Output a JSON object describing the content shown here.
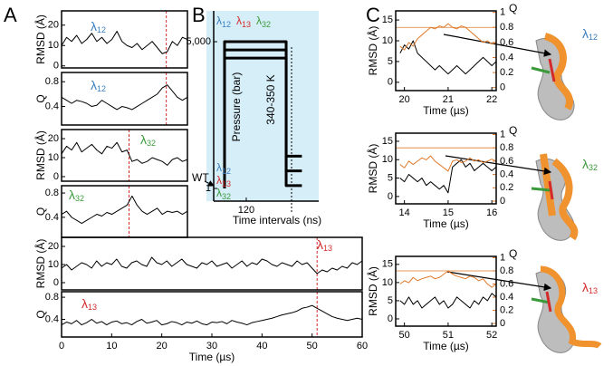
{
  "panels": [
    "A",
    "B",
    "C"
  ],
  "chart_data": [
    {
      "type": "line",
      "ylabel": "RMSD (Å)",
      "xlim": [
        0,
        25
      ],
      "ylim": [
        -1,
        27
      ],
      "yticks": [
        0,
        10,
        20
      ],
      "x": [
        0,
        1,
        2,
        3,
        4,
        5,
        6,
        7,
        8,
        9,
        10,
        11,
        12,
        13,
        14,
        15,
        16,
        17,
        18,
        19,
        20,
        21,
        22,
        23,
        24,
        25
      ],
      "series": [
        {
          "color": "#000000",
          "values": [
            10,
            14,
            12,
            15,
            11,
            13,
            16,
            12,
            14,
            11,
            13,
            17,
            12,
            10,
            9,
            11,
            8,
            10,
            12,
            9,
            6,
            7,
            12,
            10,
            14,
            13
          ]
        }
      ],
      "vlines": [
        {
          "x": 20.8,
          "color": "#d42a2a"
        }
      ],
      "annotations": [
        {
          "text": "λ",
          "sub": "12",
          "color": "#3a7fc1"
        }
      ]
    },
    {
      "type": "line",
      "ylabel": "Q",
      "xlim": [
        0,
        25
      ],
      "ylim": [
        0.1,
        0.95
      ],
      "yticks": [
        0.4,
        0.8
      ],
      "x": [
        0,
        1,
        2,
        3,
        4,
        5,
        6,
        7,
        8,
        9,
        10,
        11,
        12,
        13,
        14,
        15,
        16,
        17,
        18,
        19,
        20,
        21,
        22,
        23,
        24,
        25
      ],
      "series": [
        {
          "color": "#000000",
          "values": [
            0.55,
            0.5,
            0.45,
            0.5,
            0.48,
            0.45,
            0.4,
            0.42,
            0.5,
            0.45,
            0.4,
            0.35,
            0.4,
            0.38,
            0.35,
            0.4,
            0.45,
            0.5,
            0.55,
            0.6,
            0.7,
            0.75,
            0.65,
            0.55,
            0.5,
            0.55
          ]
        }
      ],
      "vlines": [
        {
          "x": 20.8,
          "color": "#d42a2a"
        }
      ],
      "annotations": [
        {
          "text": "λ",
          "sub": "12",
          "color": "#3a7fc1"
        }
      ]
    },
    {
      "type": "line",
      "ylabel": "RMSD (Å)",
      "xlim": [
        0,
        25
      ],
      "ylim": [
        -2.4,
        24.8
      ],
      "yticks": [
        0,
        10,
        20
      ],
      "x": [
        0,
        1,
        2,
        3,
        4,
        5,
        6,
        7,
        8,
        9,
        10,
        11,
        12,
        13,
        14,
        15,
        16,
        17,
        18,
        19,
        20,
        21,
        22,
        23,
        24,
        25
      ],
      "series": [
        {
          "color": "#000000",
          "values": [
            12,
            16,
            14,
            18,
            13,
            15,
            17,
            14,
            12,
            16,
            15,
            18,
            13,
            14,
            8,
            9,
            7,
            8,
            10,
            9,
            8,
            6,
            9,
            10,
            8,
            9
          ]
        }
      ],
      "vlines": [
        {
          "x": 13.4,
          "color": "#d42a2a"
        }
      ],
      "annotations": [
        {
          "text": "λ",
          "sub": "32",
          "color": "#3a9a3a"
        }
      ]
    },
    {
      "type": "line",
      "ylabel": "Q",
      "xlim": [
        0,
        25
      ],
      "ylim": [
        0.07,
        0.92
      ],
      "yticks": [
        0.4,
        0.8
      ],
      "x": [
        0,
        1,
        2,
        3,
        4,
        5,
        6,
        7,
        8,
        9,
        10,
        11,
        12,
        13,
        14,
        15,
        16,
        17,
        18,
        19,
        20,
        21,
        22,
        23,
        24,
        25
      ],
      "series": [
        {
          "color": "#000000",
          "values": [
            0.45,
            0.5,
            0.4,
            0.35,
            0.3,
            0.35,
            0.4,
            0.45,
            0.42,
            0.48,
            0.45,
            0.5,
            0.55,
            0.6,
            0.75,
            0.6,
            0.5,
            0.45,
            0.5,
            0.55,
            0.45,
            0.5,
            0.48,
            0.5,
            0.45,
            0.5
          ]
        }
      ],
      "vlines": [
        {
          "x": 13.4,
          "color": "#d42a2a"
        }
      ],
      "annotations": [
        {
          "text": "λ",
          "sub": "32",
          "color": "#3a9a3a"
        }
      ]
    },
    {
      "type": "line",
      "ylabel": "RMSD (Å)",
      "xlim": [
        0,
        60
      ],
      "ylim": [
        -4,
        25
      ],
      "yticks": [
        0,
        10,
        20
      ],
      "x": [
        0,
        1,
        2,
        3,
        4,
        5,
        6,
        7,
        8,
        9,
        10,
        11,
        12,
        13,
        14,
        15,
        16,
        17,
        18,
        19,
        20,
        21,
        22,
        23,
        24,
        25,
        26,
        27,
        28,
        29,
        30,
        31,
        32,
        33,
        34,
        35,
        36,
        37,
        38,
        39,
        40,
        41,
        42,
        43,
        44,
        45,
        46,
        47,
        48,
        49,
        50,
        51,
        52,
        53,
        54,
        55,
        56,
        57,
        58,
        59,
        60
      ],
      "series": [
        {
          "color": "#000000",
          "values": [
            8,
            10,
            7,
            9,
            11,
            10,
            8,
            12,
            9,
            11,
            10,
            13,
            9,
            8,
            11,
            12,
            10,
            9,
            14,
            11,
            10,
            12,
            9,
            11,
            13,
            10,
            9,
            8,
            11,
            10,
            12,
            9,
            10,
            11,
            8,
            10,
            12,
            9,
            11,
            10,
            13,
            12,
            10,
            9,
            11,
            10,
            9,
            12,
            10,
            11,
            8,
            5,
            7,
            6,
            8,
            7,
            9,
            8,
            11,
            10,
            12
          ]
        }
      ],
      "vlines": [
        {
          "x": 51,
          "color": "#d42a2a"
        }
      ],
      "annotations": [
        {
          "text": "λ",
          "sub": "13",
          "color": "#d42a2a"
        }
      ]
    },
    {
      "type": "line",
      "ylabel": "Q",
      "xlabel": "Time (µs)",
      "xlim": [
        0,
        60
      ],
      "ylim": [
        0.08,
        0.9
      ],
      "yticks": [
        0.4,
        0.8
      ],
      "xticks": [
        0,
        10,
        20,
        30,
        40,
        50,
        60
      ],
      "x": [
        0,
        1,
        2,
        3,
        4,
        5,
        6,
        7,
        8,
        9,
        10,
        11,
        12,
        13,
        14,
        15,
        16,
        17,
        18,
        19,
        20,
        21,
        22,
        23,
        24,
        25,
        26,
        27,
        28,
        29,
        30,
        31,
        32,
        33,
        34,
        35,
        36,
        37,
        38,
        39,
        40,
        41,
        42,
        43,
        44,
        45,
        46,
        47,
        48,
        49,
        50,
        51,
        52,
        53,
        54,
        55,
        56,
        57,
        58,
        59,
        60
      ],
      "series": [
        {
          "color": "#000000",
          "values": [
            0.3,
            0.35,
            0.32,
            0.38,
            0.3,
            0.34,
            0.4,
            0.33,
            0.36,
            0.3,
            0.35,
            0.37,
            0.32,
            0.34,
            0.3,
            0.36,
            0.4,
            0.33,
            0.35,
            0.38,
            0.3,
            0.32,
            0.36,
            0.34,
            0.3,
            0.35,
            0.33,
            0.37,
            0.32,
            0.3,
            0.35,
            0.34,
            0.36,
            0.32,
            0.38,
            0.35,
            0.33,
            0.3,
            0.34,
            0.36,
            0.38,
            0.4,
            0.42,
            0.45,
            0.48,
            0.5,
            0.52,
            0.55,
            0.6,
            0.62,
            0.65,
            0.6,
            0.55,
            0.5,
            0.45,
            0.42,
            0.4,
            0.38,
            0.4,
            0.42,
            0.4
          ]
        }
      ],
      "vlines": [
        {
          "x": 51,
          "color": "#d42a2a"
        }
      ],
      "annotations": [
        {
          "text": "λ",
          "sub": "13",
          "color": "#d42a2a"
        }
      ]
    },
    {
      "type": "line",
      "ylabel": "Pressure (bar)",
      "xlabel": "Time intervals (ns)",
      "temperature": "340-350 K",
      "arrow_label": "WT",
      "background": "#d6eef8",
      "xlim": [
        0,
        387
      ],
      "ylim": [
        -430,
        6050
      ],
      "yticks": [
        1,
        {
          "value": 5000,
          "label": "5,000"
        }
      ],
      "xticks": [
        120
      ],
      "series": [
        {
          "color": "#000000",
          "x": [
            40,
            40,
            267,
            267,
            325
          ],
          "values": [
            1,
            5000,
            5000,
            1100,
            1100
          ]
        },
        {
          "color": "#000000",
          "x": [
            40,
            40,
            267,
            267,
            325
          ],
          "values": [
            1,
            4720,
            4720,
            600,
            600
          ]
        },
        {
          "color": "#000000",
          "x": [
            40,
            40,
            267,
            267,
            325
          ],
          "values": [
            1,
            4440,
            4440,
            100,
            100
          ]
        }
      ],
      "annotations": [
        {
          "text": "λ",
          "sub": "12",
          "color": "#3a7fc1"
        },
        {
          "text": "λ",
          "sub": "13",
          "color": "#d42a2a"
        },
        {
          "text": "λ",
          "sub": "32",
          "color": "#3a9a3a"
        },
        {
          "text": "λ",
          "sub": "12",
          "color": "#3a7fc1"
        },
        {
          "text": "λ",
          "sub": "13",
          "color": "#d42a2a"
        },
        {
          "text": "λ",
          "sub": "32",
          "color": "#3a9a3a"
        }
      ]
    },
    {
      "type": "line",
      "ylabel": "RMSD (Å)",
      "xlabel": "Time (µs)",
      "y2label": "Q",
      "xlim": [
        19.8,
        22.1
      ],
      "ylim": [
        -2,
        17.2
      ],
      "yticks": [
        0,
        5,
        10,
        15
      ],
      "y2lim": [
        -0.04,
        1.02
      ],
      "y2ticks": [
        0,
        0.2,
        0.4,
        0.6,
        0.8,
        1
      ],
      "y2color": "#d9742a",
      "xticks": [
        20,
        21,
        22
      ],
      "x": [
        19.9,
        20.0,
        20.1,
        20.2,
        20.3,
        20.4,
        20.5,
        20.6,
        20.7,
        20.8,
        20.9,
        21.0,
        21.1,
        21.2,
        21.3,
        21.4,
        21.5,
        21.6,
        21.7,
        21.8,
        21.9,
        22.0,
        22.1
      ],
      "series": [
        {
          "color": "#000000",
          "values": [
            7,
            9,
            8,
            10,
            7,
            6,
            5,
            4,
            3,
            4,
            3,
            2,
            3,
            4,
            3,
            2,
            3,
            4,
            5,
            6,
            5,
            4,
            5
          ]
        },
        {
          "color": "#e07a2a",
          "axis": "y2",
          "values": [
            0.55,
            0.5,
            0.6,
            0.55,
            0.65,
            0.7,
            0.75,
            0.8,
            0.78,
            0.82,
            0.8,
            0.85,
            0.8,
            0.78,
            0.82,
            0.8,
            0.75,
            0.7,
            0.65,
            0.6,
            0.62,
            0.58,
            0.6
          ]
        }
      ],
      "hlines": [
        {
          "value": 0.8,
          "axis": "y2",
          "color": "#e07a2a"
        }
      ],
      "annotations": [
        {
          "text": "λ",
          "sub": "12",
          "color": "#3a7fc1"
        }
      ]
    },
    {
      "type": "line",
      "ylabel": "RMSD (Å)",
      "xlabel": "Time (µs)",
      "y2label": "Q",
      "xlim": [
        13.8,
        16.1
      ],
      "ylim": [
        -2,
        17.2
      ],
      "yticks": [
        0,
        5,
        10,
        15
      ],
      "y2lim": [
        -0.04,
        1.02
      ],
      "y2ticks": [
        0,
        0.2,
        0.4,
        0.6,
        0.8,
        1
      ],
      "y2color": "#d9742a",
      "xticks": [
        14,
        15,
        16
      ],
      "x": [
        13.9,
        14.0,
        14.1,
        14.2,
        14.3,
        14.4,
        14.5,
        14.6,
        14.7,
        14.8,
        14.9,
        15.0,
        15.1,
        15.2,
        15.3,
        15.4,
        15.5,
        15.6,
        15.7,
        15.8,
        15.9,
        16.0,
        16.1
      ],
      "series": [
        {
          "color": "#000000",
          "values": [
            5,
            4,
            6,
            5,
            4,
            5,
            3,
            4,
            3,
            2,
            3,
            1,
            8,
            9,
            10,
            8,
            9,
            7,
            8,
            9,
            8,
            7,
            8
          ]
        },
        {
          "color": "#e07a2a",
          "axis": "y2",
          "values": [
            0.55,
            0.5,
            0.6,
            0.55,
            0.6,
            0.65,
            0.62,
            0.68,
            0.6,
            0.55,
            0.5,
            0.45,
            0.6,
            0.62,
            0.58,
            0.6,
            0.65,
            0.6,
            0.62,
            0.58,
            0.6,
            0.63,
            0.6
          ]
        }
      ],
      "hlines": [
        {
          "value": 0.8,
          "axis": "y2",
          "color": "#e07a2a"
        }
      ],
      "annotations": [
        {
          "text": "λ",
          "sub": "32",
          "color": "#3a9a3a"
        }
      ]
    },
    {
      "type": "line",
      "ylabel": "RMSD (Å)",
      "xlabel": "Time (µs)",
      "y2label": "Q",
      "xlim": [
        49.8,
        52.1
      ],
      "ylim": [
        -2,
        17.2
      ],
      "yticks": [
        0,
        5,
        10,
        15
      ],
      "y2lim": [
        -0.04,
        1.02
      ],
      "y2ticks": [
        0,
        0.2,
        0.4,
        0.6,
        0.8,
        1
      ],
      "y2color": "#d9742a",
      "xticks": [
        50,
        51,
        52
      ],
      "x": [
        49.9,
        50.0,
        50.1,
        50.2,
        50.3,
        50.4,
        50.5,
        50.6,
        50.7,
        50.8,
        50.9,
        51.0,
        51.1,
        51.2,
        51.3,
        51.4,
        51.5,
        51.6,
        51.7,
        51.8,
        51.9,
        52.0,
        52.1
      ],
      "series": [
        {
          "color": "#000000",
          "values": [
            5,
            4,
            6,
            4,
            5,
            3,
            4,
            5,
            6,
            4,
            5,
            3,
            4,
            6,
            5,
            4,
            3,
            5,
            4,
            6,
            5,
            7,
            6
          ]
        },
        {
          "color": "#e07a2a",
          "axis": "y2",
          "values": [
            0.6,
            0.65,
            0.62,
            0.7,
            0.65,
            0.68,
            0.7,
            0.72,
            0.68,
            0.7,
            0.75,
            0.8,
            0.75,
            0.72,
            0.7,
            0.68,
            0.72,
            0.7,
            0.65,
            0.68,
            0.6,
            0.55,
            0.6
          ]
        }
      ],
      "hlines": [
        {
          "value": 0.8,
          "axis": "y2",
          "color": "#e07a2a"
        }
      ],
      "annotations": [
        {
          "text": "λ",
          "sub": "13",
          "color": "#d42a2a"
        }
      ]
    }
  ]
}
